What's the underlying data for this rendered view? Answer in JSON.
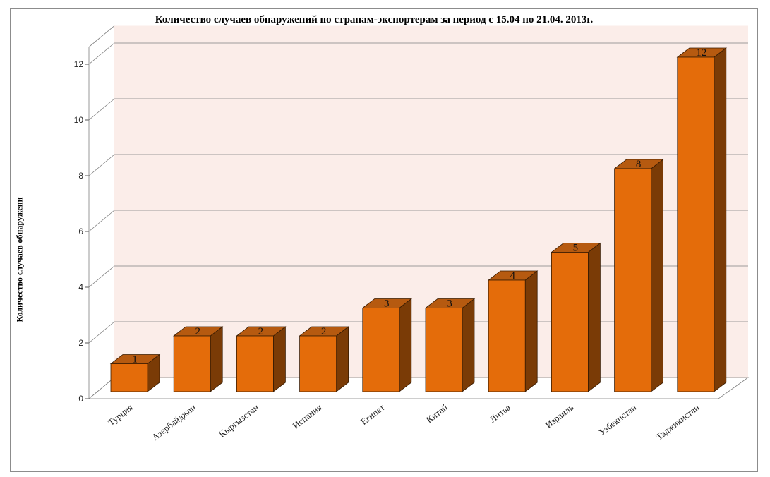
{
  "chart_data": {
    "type": "bar",
    "title": "Количество случаев обнаружений по странам-экспортерам за период с 15.04 по 21.04. 2013г.",
    "ylabel": "Количество случаев обнаружени",
    "xlabel": "",
    "categories": [
      "Турция",
      "Азербайджан",
      "Кыргызстан",
      "Испания",
      "Египет",
      "Китай",
      "Литва",
      "Израиль",
      "Узбекистан",
      "Таджикистан"
    ],
    "values": [
      1,
      2,
      2,
      2,
      3,
      3,
      4,
      5,
      8,
      12
    ],
    "ylim": [
      0,
      12
    ],
    "yticks": [
      "0",
      "2",
      "4",
      "6",
      "8",
      "10",
      "12"
    ],
    "grid": true,
    "style": "3d",
    "colors": {
      "bar_front": "#e46c0a",
      "bar_top": "#b65a10",
      "bar_side": "#7a3b06",
      "wall": "#fbede9",
      "grid": "#7f7f7f"
    }
  }
}
